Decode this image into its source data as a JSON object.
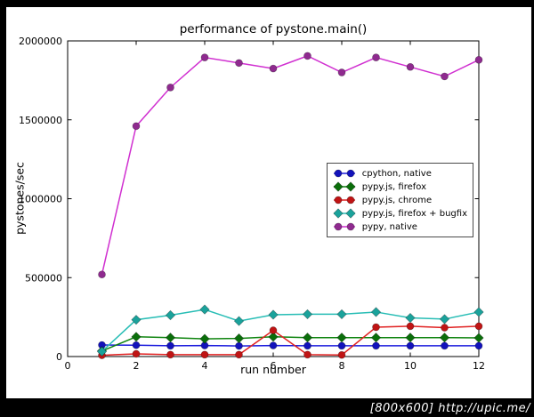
{
  "watermark": "[800x600] http://upic.me/",
  "chart_data": {
    "type": "line",
    "title": "performance of pystone.main()",
    "xlabel": "run number",
    "ylabel": "pystones/sec",
    "xlim": [
      0,
      12
    ],
    "ylim": [
      0,
      2000000
    ],
    "xticks": [
      0,
      2,
      4,
      6,
      8,
      10,
      12
    ],
    "yticks": [
      0,
      500000,
      1000000,
      1500000,
      2000000
    ],
    "ytick_labels": [
      "0",
      "500000",
      "1000000",
      "1500000",
      "2000000"
    ],
    "x": [
      1,
      2,
      3,
      4,
      5,
      6,
      7,
      8,
      9,
      10,
      11,
      12
    ],
    "grid": false,
    "legend_position": "center-right",
    "series": [
      {
        "name": "cpython, native",
        "marker": "circle",
        "line_color": "#1b1bdd",
        "marker_color": "#1212bb",
        "values": [
          73000,
          72000,
          68000,
          70000,
          67000,
          70000,
          68000,
          68000,
          68000,
          68000,
          68000,
          68000
        ]
      },
      {
        "name": "pypy.js, firefox",
        "marker": "diamond",
        "line_color": "#0e840e",
        "marker_color": "#0a6e0a",
        "values": [
          35000,
          125000,
          120000,
          112000,
          115000,
          125000,
          120000,
          120000,
          120000,
          120000,
          120000,
          118000
        ]
      },
      {
        "name": "pypy.js, chrome",
        "marker": "circle",
        "line_color": "#e02020",
        "marker_color": "#c01414",
        "values": [
          8000,
          17000,
          12000,
          12000,
          12000,
          166000,
          12000,
          10000,
          186000,
          192000,
          183000,
          192000
        ]
      },
      {
        "name": "pypy.js, firefox + bugfix",
        "marker": "diamond",
        "line_color": "#27bdb5",
        "marker_color": "#1aa29b",
        "values": [
          32000,
          233000,
          262000,
          298000,
          225000,
          265000,
          268000,
          268000,
          282000,
          245000,
          237000,
          282000
        ]
      },
      {
        "name": "pypy, native",
        "marker": "circle",
        "line_color": "#d02fd0",
        "marker_color": "#8f2a8f",
        "values": [
          520000,
          1460000,
          1705000,
          1895000,
          1860000,
          1825000,
          1905000,
          1800000,
          1895000,
          1835000,
          1775000,
          1880000
        ]
      }
    ]
  }
}
